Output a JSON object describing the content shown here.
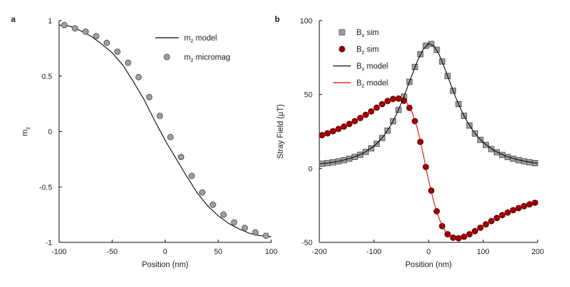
{
  "panels": [
    {
      "letter": "a"
    },
    {
      "letter": "b"
    }
  ],
  "chart_data": [
    {
      "type": "line",
      "panel": "a",
      "xlabel": "Position (nm)",
      "ylabel": "m",
      "ylabel_sub": "z",
      "xlim": [
        -100,
        100
      ],
      "ylim": [
        -1,
        1
      ],
      "xticks": [
        -100,
        -50,
        0,
        50,
        100
      ],
      "yticks": [
        -1,
        -0.5,
        0,
        0.5,
        1
      ],
      "grid": false,
      "legend_position": "top-right",
      "series": [
        {
          "name": "m model",
          "name_main": "m",
          "name_sub": "z",
          "name_rest": " model",
          "kind": "line",
          "color": "#000000",
          "x": [
            -100,
            -90,
            -80,
            -70,
            -60,
            -50,
            -40,
            -30,
            -20,
            -10,
            0,
            10,
            20,
            30,
            40,
            50,
            60,
            70,
            80,
            90,
            100
          ],
          "y": [
            0.96,
            0.95,
            0.91,
            0.86,
            0.79,
            0.71,
            0.6,
            0.45,
            0.29,
            0.1,
            -0.08,
            -0.24,
            -0.4,
            -0.55,
            -0.67,
            -0.76,
            -0.83,
            -0.88,
            -0.92,
            -0.94,
            -0.95
          ]
        },
        {
          "name": "m micromag",
          "name_main": "m",
          "name_sub": "z",
          "name_rest": " micromag",
          "kind": "marker",
          "marker": "circle",
          "color": "#9e9e9e",
          "edge": "#444444",
          "x": [
            -95,
            -85,
            -75,
            -65,
            -55,
            -45,
            -35,
            -25,
            -15,
            -5,
            5,
            15,
            25,
            35,
            45,
            55,
            65,
            75,
            85,
            95
          ],
          "y": [
            0.96,
            0.93,
            0.9,
            0.86,
            0.8,
            0.72,
            0.62,
            0.49,
            0.31,
            0.14,
            -0.05,
            -0.23,
            -0.4,
            -0.55,
            -0.66,
            -0.75,
            -0.82,
            -0.87,
            -0.91,
            -0.94
          ]
        }
      ]
    },
    {
      "type": "line",
      "panel": "b",
      "xlabel": "Position (nm)",
      "ylabel": "Stray Field (µT)",
      "xlim": [
        -200,
        200
      ],
      "ylim": [
        -50,
        100
      ],
      "xticks": [
        -200,
        -100,
        0,
        100,
        200
      ],
      "yticks": [
        -50,
        0,
        50,
        100
      ],
      "grid": false,
      "legend_position": "top-left",
      "series": [
        {
          "name": "B sim",
          "name_main": "B",
          "name_sub": "x",
          "name_rest": " sim",
          "kind": "marker",
          "marker": "square",
          "color": "#9e9e9e",
          "edge": "#444444",
          "x": [
            -195,
            -185,
            -175,
            -165,
            -155,
            -145,
            -135,
            -125,
            -115,
            -105,
            -95,
            -85,
            -75,
            -65,
            -55,
            -45,
            -35,
            -25,
            -15,
            -5,
            5,
            15,
            25,
            35,
            45,
            55,
            65,
            75,
            85,
            95,
            105,
            115,
            125,
            135,
            145,
            155,
            165,
            175,
            185,
            195
          ],
          "y": [
            3.2,
            3.6,
            4.2,
            4.8,
            5.6,
            6.6,
            7.8,
            9.3,
            11.2,
            13.6,
            16.7,
            20.6,
            25.6,
            31.9,
            39.6,
            48.6,
            58.6,
            68.6,
            77.3,
            83.0,
            84.2,
            80.2,
            72.3,
            62.5,
            52.6,
            43.5,
            35.6,
            29.0,
            23.6,
            19.3,
            15.9,
            13.1,
            10.9,
            9.1,
            7.7,
            6.6,
            5.6,
            4.8,
            4.2,
            3.6
          ]
        },
        {
          "name": "B sim",
          "name_main": "B",
          "name_sub": "z",
          "name_rest": " sim",
          "kind": "marker",
          "marker": "circle",
          "color": "#8b0000",
          "edge": "#5a0000",
          "x": [
            -195,
            -185,
            -175,
            -165,
            -155,
            -145,
            -135,
            -125,
            -115,
            -105,
            -95,
            -85,
            -75,
            -65,
            -55,
            -45,
            -35,
            -25,
            -15,
            -5,
            5,
            15,
            25,
            35,
            45,
            55,
            65,
            75,
            85,
            95,
            105,
            115,
            125,
            135,
            145,
            155,
            165,
            175,
            185,
            195
          ],
          "y": [
            22.5,
            23.8,
            25.2,
            26.7,
            28.3,
            30.1,
            32.0,
            34.1,
            36.3,
            38.6,
            41.1,
            43.5,
            45.6,
            47.0,
            47.3,
            45.8,
            41.0,
            32.0,
            18.0,
            1.0,
            -15.0,
            -29.0,
            -39.0,
            -44.5,
            -46.8,
            -47.2,
            -46.2,
            -44.5,
            -42.4,
            -40.1,
            -37.8,
            -35.6,
            -33.5,
            -31.6,
            -29.8,
            -28.2,
            -26.8,
            -25.5,
            -24.3,
            -23.2
          ]
        },
        {
          "name": "B model",
          "name_main": "B",
          "name_sub": "x",
          "name_rest": " model",
          "kind": "line",
          "color": "#000000",
          "x": [
            -200,
            -180,
            -160,
            -140,
            -120,
            -100,
            -90,
            -80,
            -70,
            -60,
            -50,
            -40,
            -30,
            -20,
            -10,
            0,
            10,
            20,
            30,
            40,
            50,
            60,
            70,
            80,
            90,
            100,
            120,
            140,
            160,
            180,
            200
          ],
          "y": [
            3.0,
            3.9,
            5.2,
            7.2,
            10.2,
            15.0,
            18.6,
            23.0,
            28.6,
            35.6,
            44.0,
            53.6,
            63.5,
            73.0,
            80.3,
            84.6,
            82.8,
            76.6,
            67.4,
            57.5,
            47.9,
            39.4,
            32.2,
            26.3,
            21.5,
            17.6,
            12.1,
            8.5,
            6.2,
            4.6,
            3.4
          ]
        },
        {
          "name": "B model",
          "name_main": "B",
          "name_sub": "z",
          "name_rest": " model",
          "kind": "line",
          "color": "#e00000",
          "x": [
            -200,
            -180,
            -160,
            -140,
            -120,
            -100,
            -90,
            -80,
            -70,
            -60,
            -50,
            -40,
            -30,
            -20,
            -10,
            0,
            10,
            20,
            30,
            40,
            50,
            60,
            70,
            80,
            90,
            100,
            120,
            140,
            160,
            180,
            200
          ],
          "y": [
            21.8,
            24.5,
            27.5,
            31.0,
            35.2,
            39.8,
            42.3,
            44.6,
            46.3,
            47.4,
            47.2,
            44.5,
            38.0,
            26.5,
            10.0,
            -8.0,
            -23.0,
            -34.5,
            -42.0,
            -46.0,
            -47.3,
            -47.0,
            -45.6,
            -43.6,
            -41.4,
            -39.0,
            -34.3,
            -30.2,
            -26.8,
            -24.0,
            -21.6
          ]
        }
      ]
    }
  ]
}
